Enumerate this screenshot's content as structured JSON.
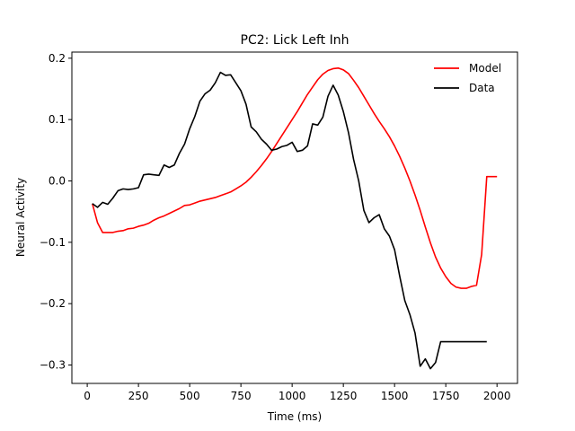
{
  "chart_data": {
    "type": "line",
    "title": "PC2: Lick Left Inh",
    "xlabel": "Time (ms)",
    "ylabel": "Neural Activity",
    "xlim": [
      -75,
      2100
    ],
    "ylim": [
      -0.33,
      0.21
    ],
    "xticks": [
      0,
      250,
      500,
      750,
      1000,
      1250,
      1500,
      1750,
      2000
    ],
    "xtick_labels": [
      "0",
      "250",
      "500",
      "750",
      "1000",
      "1250",
      "1500",
      "1750",
      "2000"
    ],
    "yticks": [
      -0.3,
      -0.2,
      -0.1,
      0.0,
      0.1,
      0.2
    ],
    "ytick_labels": [
      "−0.3",
      "−0.2",
      "−0.1",
      "0.0",
      "0.1",
      "0.2"
    ],
    "grid": false,
    "legend_position": "top-right",
    "series": [
      {
        "name": "Model",
        "color": "#ff0000",
        "x": [
          25,
          50,
          75,
          100,
          125,
          150,
          175,
          200,
          225,
          250,
          275,
          300,
          325,
          350,
          375,
          400,
          425,
          450,
          475,
          500,
          525,
          550,
          575,
          600,
          625,
          650,
          675,
          700,
          725,
          750,
          775,
          800,
          825,
          850,
          875,
          900,
          925,
          950,
          975,
          1000,
          1025,
          1050,
          1075,
          1100,
          1125,
          1150,
          1175,
          1200,
          1225,
          1250,
          1275,
          1300,
          1325,
          1350,
          1375,
          1400,
          1425,
          1450,
          1475,
          1500,
          1525,
          1550,
          1575,
          1600,
          1625,
          1650,
          1675,
          1700,
          1725,
          1750,
          1775,
          1800,
          1825,
          1850,
          1875,
          1900,
          1925,
          1950,
          1975,
          2000
        ],
        "values": [
          -0.037,
          -0.068,
          -0.084,
          -0.084,
          -0.084,
          -0.082,
          -0.081,
          -0.078,
          -0.077,
          -0.074,
          -0.072,
          -0.069,
          -0.064,
          -0.06,
          -0.057,
          -0.053,
          -0.049,
          -0.045,
          -0.04,
          -0.039,
          -0.036,
          -0.033,
          -0.031,
          -0.029,
          -0.027,
          -0.024,
          -0.021,
          -0.018,
          -0.013,
          -0.008,
          -0.002,
          0.006,
          0.015,
          0.025,
          0.036,
          0.048,
          0.061,
          0.074,
          0.087,
          0.1,
          0.113,
          0.127,
          0.141,
          0.153,
          0.165,
          0.174,
          0.18,
          0.183,
          0.184,
          0.181,
          0.175,
          0.164,
          0.152,
          0.138,
          0.124,
          0.11,
          0.097,
          0.085,
          0.072,
          0.057,
          0.04,
          0.021,
          0.0,
          -0.023,
          -0.048,
          -0.075,
          -0.101,
          -0.124,
          -0.142,
          -0.156,
          -0.167,
          -0.173,
          -0.175,
          -0.175,
          -0.172,
          -0.17,
          -0.12,
          0.007,
          0.007,
          0.007
        ]
      },
      {
        "name": "Data",
        "color": "#000000",
        "x": [
          25,
          50,
          75,
          100,
          125,
          150,
          175,
          200,
          225,
          250,
          275,
          300,
          325,
          350,
          375,
          400,
          425,
          450,
          475,
          500,
          525,
          550,
          575,
          600,
          625,
          650,
          675,
          700,
          725,
          750,
          775,
          800,
          825,
          850,
          875,
          900,
          925,
          950,
          975,
          1000,
          1025,
          1050,
          1075,
          1100,
          1125,
          1150,
          1175,
          1200,
          1225,
          1250,
          1275,
          1300,
          1325,
          1350,
          1375,
          1400,
          1425,
          1450,
          1475,
          1500,
          1525,
          1550,
          1575,
          1600,
          1625,
          1650,
          1675,
          1700,
          1725,
          1750,
          1775,
          1800,
          1825,
          1850,
          1875,
          1900,
          1925,
          1950
        ],
        "values": [
          -0.037,
          -0.043,
          -0.035,
          -0.038,
          -0.028,
          -0.016,
          -0.013,
          -0.014,
          -0.013,
          -0.011,
          0.01,
          0.011,
          0.01,
          0.009,
          0.026,
          0.022,
          0.026,
          0.045,
          0.06,
          0.085,
          0.105,
          0.13,
          0.142,
          0.148,
          0.16,
          0.177,
          0.172,
          0.173,
          0.16,
          0.147,
          0.125,
          0.088,
          0.08,
          0.068,
          0.06,
          0.05,
          0.052,
          0.056,
          0.058,
          0.063,
          0.048,
          0.05,
          0.057,
          0.093,
          0.091,
          0.104,
          0.138,
          0.156,
          0.14,
          0.113,
          0.079,
          0.035,
          0.0,
          -0.048,
          -0.068,
          -0.06,
          -0.055,
          -0.078,
          -0.09,
          -0.112,
          -0.155,
          -0.195,
          -0.218,
          -0.248,
          -0.302,
          -0.29,
          -0.306,
          -0.296,
          -0.262,
          -0.262,
          -0.262,
          -0.262,
          -0.262,
          -0.262,
          -0.262,
          -0.262,
          -0.262,
          -0.262
        ]
      }
    ]
  }
}
